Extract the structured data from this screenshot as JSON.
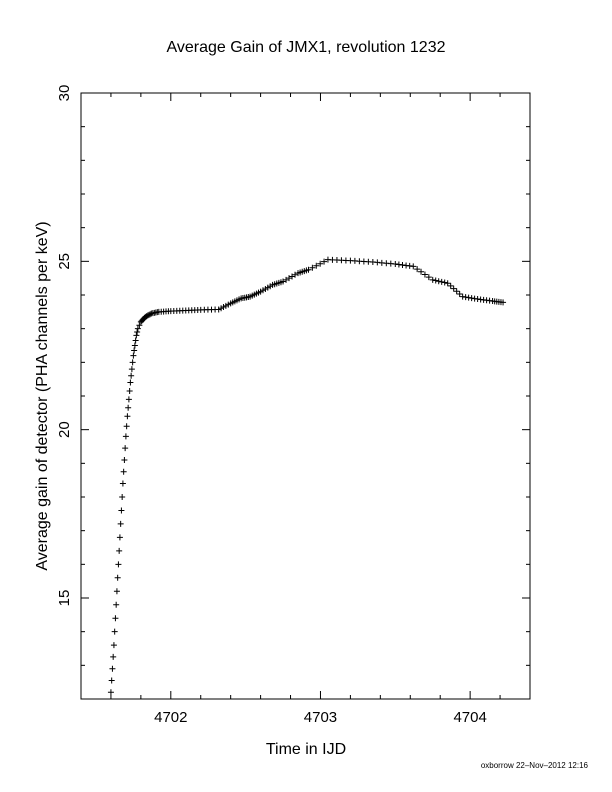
{
  "chart_data": {
    "type": "scatter",
    "title": "Average Gain of JMX1, revolution 1232",
    "xlabel": "Time in IJD",
    "ylabel": "Average gain of detector (PHA channels per keV)",
    "xlim": [
      4701.4,
      4704.4
    ],
    "ylim": [
      12,
      30
    ],
    "x_ticks": [
      4702,
      4703,
      4704
    ],
    "y_ticks": [
      15,
      20,
      25,
      30
    ],
    "marker": "plus",
    "legend": "none",
    "grid": false,
    "series": [
      {
        "points": [
          [
            4701.6,
            12.2
          ],
          [
            4701.61,
            12.9
          ],
          [
            4701.62,
            13.6
          ],
          [
            4701.63,
            14.4
          ],
          [
            4701.64,
            15.2
          ],
          [
            4701.65,
            16.0
          ],
          [
            4701.66,
            16.8
          ],
          [
            4701.67,
            17.6
          ],
          [
            4701.68,
            18.4
          ],
          [
            4701.69,
            19.1
          ],
          [
            4701.7,
            19.8
          ],
          [
            4701.71,
            20.4
          ],
          [
            4701.72,
            20.9
          ],
          [
            4701.73,
            21.4
          ],
          [
            4701.74,
            21.8
          ],
          [
            4701.75,
            22.2
          ],
          [
            4701.76,
            22.5
          ],
          [
            4701.77,
            22.8
          ],
          [
            4701.78,
            23.0
          ],
          [
            4701.8,
            23.2
          ],
          [
            4701.83,
            23.35
          ],
          [
            4701.87,
            23.45
          ],
          [
            4701.92,
            23.5
          ],
          [
            4702.0,
            23.52
          ],
          [
            4702.1,
            23.54
          ],
          [
            4702.2,
            23.56
          ],
          [
            4702.32,
            23.57
          ],
          [
            4702.4,
            23.75
          ],
          [
            4702.47,
            23.9
          ],
          [
            4702.53,
            23.95
          ],
          [
            4702.6,
            24.1
          ],
          [
            4702.68,
            24.3
          ],
          [
            4702.75,
            24.4
          ],
          [
            4702.85,
            24.65
          ],
          [
            4702.92,
            24.75
          ],
          [
            4703.05,
            25.05
          ],
          [
            4703.2,
            25.02
          ],
          [
            4703.35,
            24.98
          ],
          [
            4703.5,
            24.92
          ],
          [
            4703.62,
            24.85
          ],
          [
            4703.75,
            24.45
          ],
          [
            4703.85,
            24.35
          ],
          [
            4703.95,
            23.95
          ],
          [
            4704.05,
            23.88
          ],
          [
            4704.15,
            23.82
          ],
          [
            4704.22,
            23.78
          ]
        ]
      }
    ]
  },
  "footer": "oxborrow 22–Nov–2012 12:16"
}
